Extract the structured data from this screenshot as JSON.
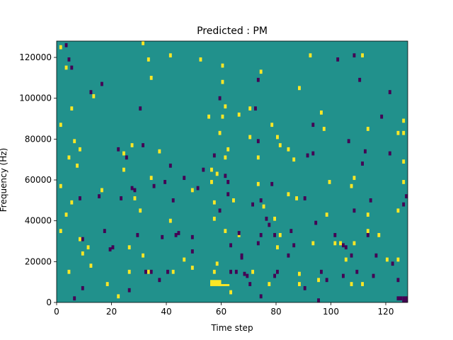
{
  "chart_data": {
    "type": "heatmap",
    "title": "Predicted : PM",
    "xlabel": "Time step",
    "ylabel": "Frequency (Hz)",
    "xlim": [
      0,
      128
    ],
    "ylim": [
      0,
      128000
    ],
    "x_ticks": [
      0,
      20,
      40,
      60,
      80,
      100,
      120
    ],
    "y_ticks": [
      0,
      20000,
      40000,
      60000,
      80000,
      100000,
      120000
    ],
    "x_tick_labels": [
      "0",
      "20",
      "40",
      "60",
      "80",
      "100",
      "120"
    ],
    "y_tick_labels": [
      "0",
      "20000",
      "40000",
      "60000",
      "80000",
      "100000",
      "120000"
    ],
    "n_time_bins": 128,
    "n_freq_bins": 128,
    "grid": false,
    "colormap": {
      "background": "#21918c",
      "high": "#fde725",
      "low": "#440154"
    },
    "cells_high": [
      [
        1,
        124
      ],
      [
        1,
        86
      ],
      [
        1,
        56
      ],
      [
        1,
        34
      ],
      [
        3,
        114
      ],
      [
        3,
        42
      ],
      [
        4,
        14
      ],
      [
        4,
        70
      ],
      [
        5,
        94
      ],
      [
        5,
        48
      ],
      [
        6,
        78
      ],
      [
        7,
        66
      ],
      [
        8,
        74
      ],
      [
        8,
        30
      ],
      [
        9,
        23
      ],
      [
        11,
        26
      ],
      [
        12,
        17
      ],
      [
        13,
        100
      ],
      [
        16,
        54
      ],
      [
        18,
        8
      ],
      [
        22,
        2
      ],
      [
        24,
        72
      ],
      [
        24,
        64
      ],
      [
        26,
        14
      ],
      [
        26,
        26
      ],
      [
        27,
        76
      ],
      [
        28,
        50
      ],
      [
        30,
        44
      ],
      [
        31,
        126
      ],
      [
        31,
        22
      ],
      [
        33,
        118
      ],
      [
        33,
        14
      ],
      [
        34,
        109
      ],
      [
        34,
        60
      ],
      [
        37,
        73
      ],
      [
        41,
        120
      ],
      [
        41,
        39
      ],
      [
        42,
        14
      ],
      [
        46,
        20
      ],
      [
        49,
        16
      ],
      [
        49,
        54
      ],
      [
        52,
        118
      ],
      [
        55,
        90
      ],
      [
        56,
        64
      ],
      [
        56,
        58
      ],
      [
        57,
        48
      ],
      [
        57,
        40
      ],
      [
        57,
        14
      ],
      [
        58,
        62
      ],
      [
        58,
        18
      ],
      [
        59,
        82
      ],
      [
        59,
        8
      ],
      [
        60,
        115
      ],
      [
        60,
        107
      ],
      [
        60,
        90
      ],
      [
        61,
        95
      ],
      [
        61,
        34
      ],
      [
        61,
        70
      ],
      [
        62,
        74
      ],
      [
        63,
        4
      ],
      [
        64,
        49
      ],
      [
        66,
        32
      ],
      [
        66,
        91
      ],
      [
        71,
        14
      ],
      [
        73,
        57
      ],
      [
        73,
        70
      ],
      [
        74,
        112
      ],
      [
        75,
        46
      ],
      [
        77,
        8
      ],
      [
        78,
        86
      ],
      [
        79,
        40
      ],
      [
        80,
        26
      ],
      [
        80,
        80
      ],
      [
        81,
        32
      ],
      [
        81,
        76
      ],
      [
        84,
        52
      ],
      [
        84,
        74
      ],
      [
        86,
        69
      ],
      [
        87,
        50
      ],
      [
        88,
        104
      ],
      [
        88,
        8
      ],
      [
        88,
        13
      ],
      [
        92,
        120
      ],
      [
        93,
        28
      ],
      [
        95,
        10
      ],
      [
        96,
        92
      ],
      [
        97,
        84
      ],
      [
        98,
        42
      ],
      [
        99,
        58
      ],
      [
        101,
        28
      ],
      [
        103,
        28
      ],
      [
        105,
        20
      ],
      [
        107,
        8
      ],
      [
        107,
        56
      ],
      [
        108,
        28
      ],
      [
        108,
        60
      ],
      [
        111,
        120
      ],
      [
        111,
        8
      ],
      [
        113,
        84
      ],
      [
        113,
        42
      ],
      [
        113,
        34
      ],
      [
        117,
        32
      ],
      [
        120,
        20
      ],
      [
        124,
        20
      ],
      [
        124,
        44
      ],
      [
        124,
        82
      ],
      [
        126,
        88
      ],
      [
        126,
        68
      ],
      [
        126,
        82
      ],
      [
        126,
        58
      ],
      [
        70,
        94
      ],
      [
        70,
        80
      ]
    ],
    "cells_low": [
      [
        3,
        125
      ],
      [
        4,
        118
      ],
      [
        5,
        114
      ],
      [
        6,
        1
      ],
      [
        8,
        50
      ],
      [
        9,
        6
      ],
      [
        9,
        30
      ],
      [
        12,
        102
      ],
      [
        15,
        51
      ],
      [
        16,
        106
      ],
      [
        17,
        34
      ],
      [
        19,
        25
      ],
      [
        20,
        26
      ],
      [
        22,
        74
      ],
      [
        23,
        50
      ],
      [
        25,
        70
      ],
      [
        26,
        5
      ],
      [
        27,
        55
      ],
      [
        28,
        54
      ],
      [
        29,
        32
      ],
      [
        30,
        94
      ],
      [
        31,
        76
      ],
      [
        32,
        14
      ],
      [
        34,
        14
      ],
      [
        35,
        56
      ],
      [
        37,
        10
      ],
      [
        38,
        31
      ],
      [
        39,
        58
      ],
      [
        40,
        14
      ],
      [
        41,
        66
      ],
      [
        42,
        49
      ],
      [
        43,
        32
      ],
      [
        44,
        33
      ],
      [
        46,
        60
      ],
      [
        49,
        24
      ],
      [
        49,
        31
      ],
      [
        51,
        55
      ],
      [
        53,
        64
      ],
      [
        57,
        71
      ],
      [
        59,
        99
      ],
      [
        59,
        44
      ],
      [
        61,
        61
      ],
      [
        62,
        52
      ],
      [
        62,
        58
      ],
      [
        63,
        14
      ],
      [
        63,
        27
      ],
      [
        65,
        14
      ],
      [
        66,
        33
      ],
      [
        67,
        21
      ],
      [
        67,
        22
      ],
      [
        68,
        13
      ],
      [
        69,
        12
      ],
      [
        70,
        8
      ],
      [
        71,
        47
      ],
      [
        72,
        94
      ],
      [
        73,
        108
      ],
      [
        73,
        78
      ],
      [
        73,
        28
      ],
      [
        74,
        49
      ],
      [
        74,
        32
      ],
      [
        74,
        2
      ],
      [
        76,
        40
      ],
      [
        77,
        37
      ],
      [
        78,
        57
      ],
      [
        79,
        32
      ],
      [
        79,
        12
      ],
      [
        80,
        14
      ],
      [
        84,
        22
      ],
      [
        85,
        34
      ],
      [
        86,
        27
      ],
      [
        90,
        6
      ],
      [
        90,
        50
      ],
      [
        91,
        71
      ],
      [
        93,
        72
      ],
      [
        93,
        86
      ],
      [
        94,
        38
      ],
      [
        95,
        0
      ],
      [
        96,
        14
      ],
      [
        98,
        10
      ],
      [
        101,
        32
      ],
      [
        102,
        118
      ],
      [
        104,
        12
      ],
      [
        104,
        27
      ],
      [
        105,
        26
      ],
      [
        106,
        78
      ],
      [
        107,
        22
      ],
      [
        108,
        44
      ],
      [
        108,
        120
      ],
      [
        109,
        14
      ],
      [
        110,
        108
      ],
      [
        111,
        67
      ],
      [
        112,
        73
      ],
      [
        113,
        32
      ],
      [
        114,
        49
      ],
      [
        115,
        12
      ],
      [
        116,
        22
      ],
      [
        118,
        90
      ],
      [
        121,
        102
      ],
      [
        121,
        72
      ],
      [
        122,
        18
      ],
      [
        124,
        10
      ],
      [
        126,
        47
      ],
      [
        127,
        51
      ]
    ],
    "regions_high": [
      [
        56,
        60,
        8,
        11
      ],
      [
        60,
        63,
        8,
        9
      ]
    ],
    "regions_low": [
      [
        124,
        126,
        1,
        3
      ],
      [
        126,
        128,
        0,
        3
      ]
    ]
  }
}
